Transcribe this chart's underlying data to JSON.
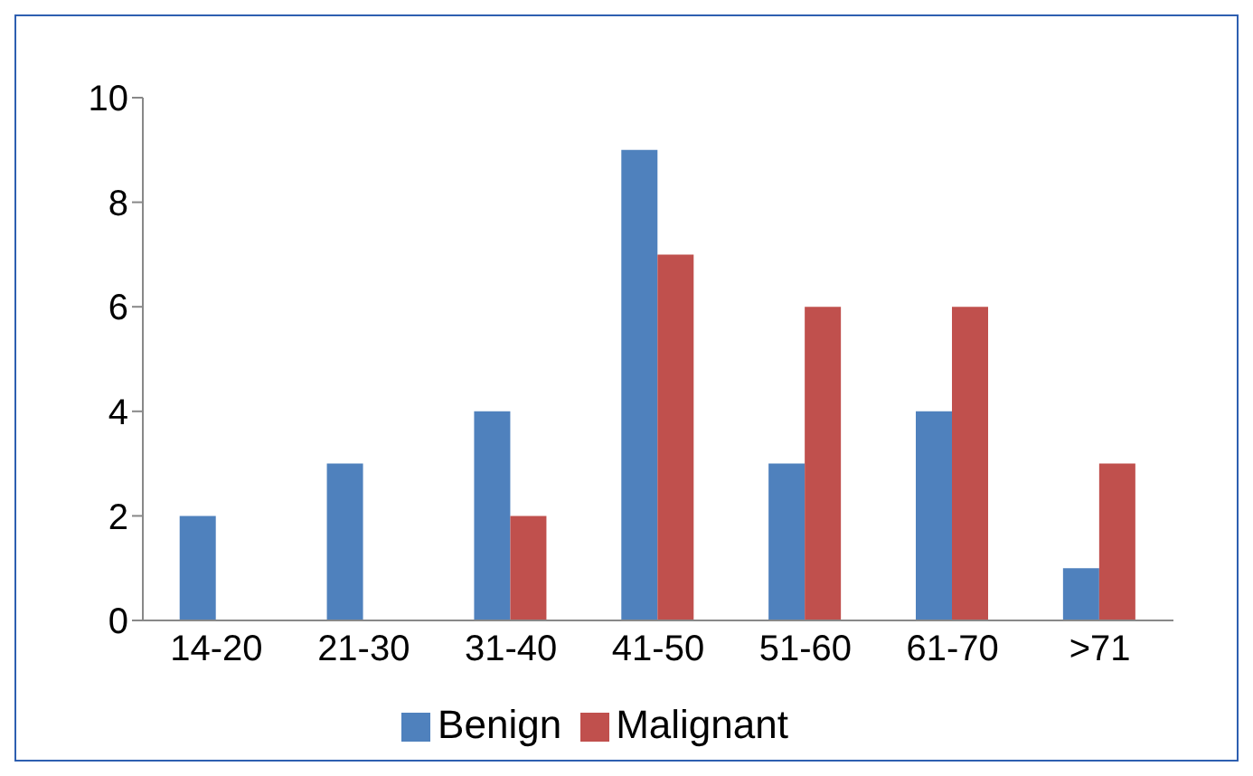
{
  "chart_data": {
    "type": "bar",
    "categories": [
      "14-20",
      "21-30",
      "31-40",
      "41-50",
      "51-60",
      "61-70",
      ">71"
    ],
    "series": [
      {
        "name": "Benign",
        "color": "#4f81bd",
        "values": [
          2,
          3,
          4,
          9,
          3,
          4,
          1
        ]
      },
      {
        "name": "Malignant",
        "color": "#c0504d",
        "values": [
          0,
          0,
          2,
          7,
          6,
          6,
          3
        ]
      }
    ],
    "ylim": [
      0,
      10
    ],
    "yticks": [
      0,
      2,
      4,
      6,
      8,
      10
    ],
    "grid": false,
    "legend": "bottom"
  }
}
